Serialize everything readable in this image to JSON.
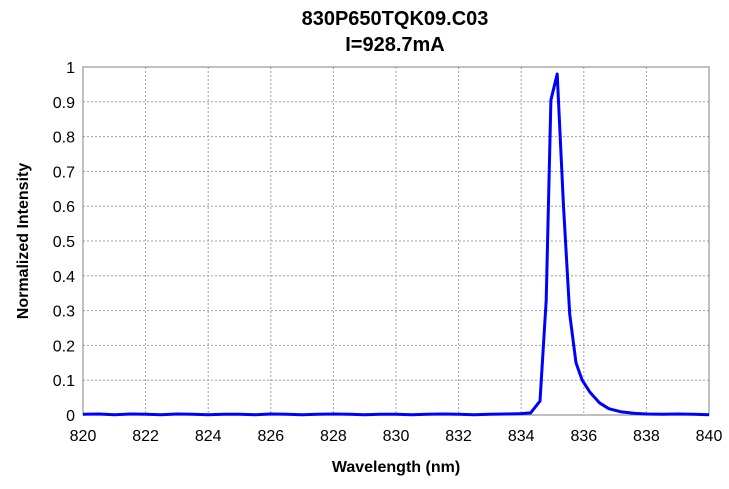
{
  "chart_data": {
    "type": "line",
    "title": "830P650TQK09.C03",
    "subtitle": "I=928.7mA",
    "xlabel": "Wavelength (nm)",
    "ylabel": "Normalized Intensity",
    "xlim": [
      820,
      840
    ],
    "ylim": [
      0,
      1
    ],
    "x_ticks": [
      820,
      822,
      824,
      826,
      828,
      830,
      832,
      834,
      836,
      838,
      840
    ],
    "y_ticks": [
      0,
      0.1,
      0.2,
      0.3,
      0.4,
      0.5,
      0.6,
      0.7,
      0.8,
      0.9,
      1
    ],
    "y_tick_labels": [
      "0",
      "0.1",
      "0.2",
      "0.3",
      "0.4",
      "0.5",
      "0.6",
      "0.7",
      "0.8",
      "0.9",
      "1"
    ],
    "grid": true,
    "line_color": "#0000ff",
    "series": [
      {
        "x": [
          820.0,
          820.5,
          821.0,
          821.5,
          822.0,
          822.5,
          823.0,
          823.5,
          824.0,
          824.5,
          825.0,
          825.5,
          826.0,
          826.5,
          827.0,
          827.5,
          828.0,
          828.5,
          829.0,
          829.5,
          830.0,
          830.5,
          831.0,
          831.5,
          832.0,
          832.5,
          833.0,
          833.5,
          834.0,
          834.3,
          834.6,
          834.8,
          834.95,
          835.15,
          835.35,
          835.55,
          835.75,
          835.95,
          836.2,
          836.5,
          836.8,
          837.2,
          837.6,
          838.0,
          838.5,
          839.0,
          839.5,
          840.0
        ],
        "y": [
          0.002,
          0.003,
          0.001,
          0.003,
          0.002,
          0.001,
          0.003,
          0.002,
          0.001,
          0.002,
          0.002,
          0.001,
          0.003,
          0.002,
          0.001,
          0.002,
          0.003,
          0.002,
          0.001,
          0.002,
          0.002,
          0.001,
          0.002,
          0.003,
          0.002,
          0.001,
          0.002,
          0.003,
          0.004,
          0.006,
          0.04,
          0.33,
          0.905,
          0.98,
          0.6,
          0.29,
          0.15,
          0.1,
          0.065,
          0.035,
          0.018,
          0.009,
          0.005,
          0.003,
          0.002,
          0.003,
          0.002,
          0.001
        ]
      }
    ]
  }
}
